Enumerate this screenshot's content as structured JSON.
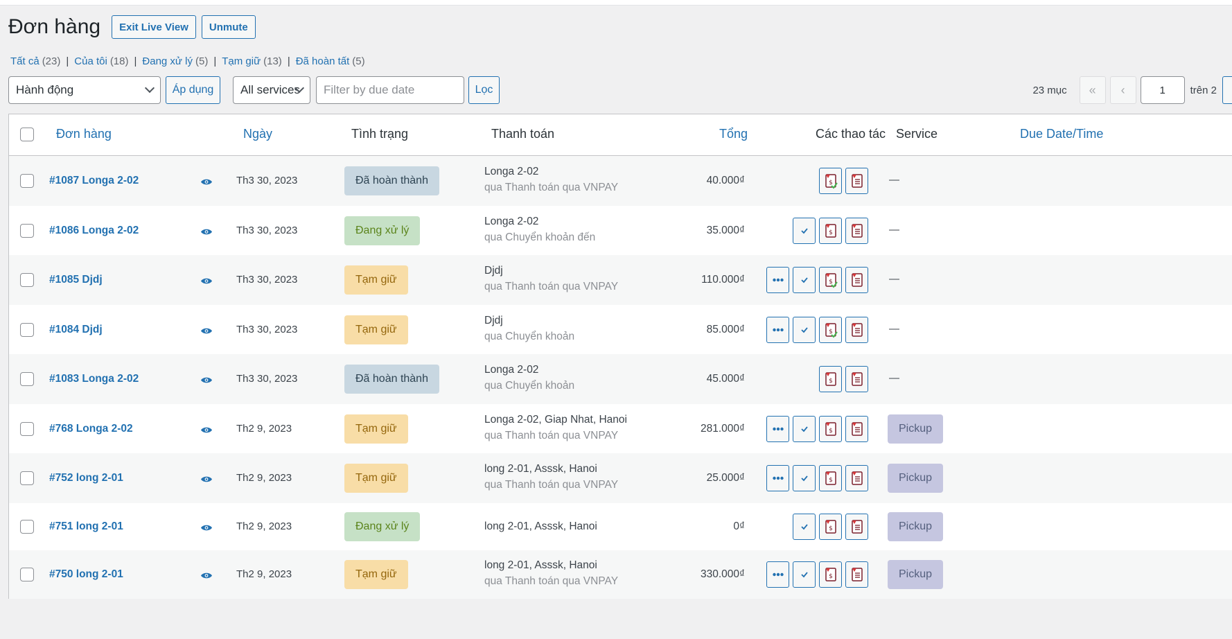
{
  "header": {
    "title": "Đơn hàng",
    "exit_live_view": "Exit Live View",
    "unmute": "Unmute"
  },
  "subsubsub": [
    {
      "label": "Tất cả",
      "count": "(23)"
    },
    {
      "label": "Của tôi",
      "count": "(18)"
    },
    {
      "label": "Đang xử lý",
      "count": "(5)"
    },
    {
      "label": "Tạm giữ",
      "count": "(13)"
    },
    {
      "label": "Đã hoàn tất",
      "count": "(5)"
    }
  ],
  "tablenav": {
    "bulk_action": "Hành động",
    "apply": "Áp dụng",
    "services": "All services",
    "due_date_placeholder": "Filter by due date",
    "filter": "Lọc",
    "items_count": "23 mục",
    "first": "«",
    "prev": "‹",
    "current_page": "1",
    "of_pages": "trên 2"
  },
  "columns": {
    "order": "Đơn hàng",
    "date": "Ngày",
    "status": "Tình trạng",
    "billing": "Thanh toán",
    "total": "Tổng",
    "actions": "Các thao tác",
    "service": "Service",
    "due": "Due Date/Time"
  },
  "orders": [
    {
      "order": "#1087 Longa 2-02",
      "date": "Th3 30, 2023",
      "status": "Đã hoàn thành",
      "status_type": "done",
      "billing_name": "Longa 2-02",
      "billing_via": "qua Thanh toán qua VNPAY",
      "total": "40.000₫",
      "actions": [
        "invoice-check-icon",
        "packing-slip-icon"
      ],
      "service": "—"
    },
    {
      "order": "#1086 Longa 2-02",
      "date": "Th3 30, 2023",
      "status": "Đang xử lý",
      "status_type": "proc",
      "billing_name": "Longa 2-02",
      "billing_via": "qua Chuyển khoản đến",
      "total": "35.000₫",
      "actions": [
        "complete-check-icon",
        "invoice-icon",
        "packing-slip-icon"
      ],
      "service": "—"
    },
    {
      "order": "#1085 Djdj",
      "date": "Th3 30, 2023",
      "status": "Tạm giữ",
      "status_type": "hold",
      "billing_name": "Djdj",
      "billing_via": "qua Thanh toán qua VNPAY",
      "total": "110.000₫",
      "actions": [
        "processing-dots-icon",
        "complete-check-icon",
        "invoice-check-icon",
        "packing-slip-icon"
      ],
      "service": "—"
    },
    {
      "order": "#1084 Djdj",
      "date": "Th3 30, 2023",
      "status": "Tạm giữ",
      "status_type": "hold",
      "billing_name": "Djdj",
      "billing_via": "qua Chuyển khoản",
      "total": "85.000₫",
      "actions": [
        "processing-dots-icon",
        "complete-check-icon",
        "invoice-check-icon",
        "packing-slip-icon"
      ],
      "service": "—"
    },
    {
      "order": "#1083 Longa 2-02",
      "date": "Th3 30, 2023",
      "status": "Đã hoàn thành",
      "status_type": "done",
      "billing_name": "Longa 2-02",
      "billing_via": "qua Chuyển khoản",
      "total": "45.000₫",
      "actions": [
        "invoice-icon",
        "packing-slip-icon"
      ],
      "service": "—"
    },
    {
      "order": "#768 Longa 2-02",
      "date": "Th2 9, 2023",
      "status": "Tạm giữ",
      "status_type": "hold",
      "billing_name": "Longa 2-02, Giap Nhat, Hanoi",
      "billing_via": "qua Thanh toán qua VNPAY",
      "total": "281.000₫",
      "actions": [
        "processing-dots-icon",
        "complete-check-icon",
        "invoice-icon",
        "packing-slip-icon"
      ],
      "service": "Pickup"
    },
    {
      "order": "#752 long 2-01",
      "date": "Th2 9, 2023",
      "status": "Tạm giữ",
      "status_type": "hold",
      "billing_name": "long 2-01, Asssk, Hanoi",
      "billing_via": "qua Thanh toán qua VNPAY",
      "total": "25.000₫",
      "actions": [
        "processing-dots-icon",
        "complete-check-icon",
        "invoice-icon",
        "packing-slip-icon"
      ],
      "service": "Pickup"
    },
    {
      "order": "#751 long 2-01",
      "date": "Th2 9, 2023",
      "status": "Đang xử lý",
      "status_type": "proc",
      "billing_name": "long 2-01, Asssk, Hanoi",
      "billing_via": "",
      "total": "0₫",
      "actions": [
        "complete-check-icon",
        "invoice-icon",
        "packing-slip-icon"
      ],
      "service": "Pickup"
    },
    {
      "order": "#750 long 2-01",
      "date": "Th2 9, 2023",
      "status": "Tạm giữ",
      "status_type": "hold",
      "billing_name": "long 2-01, Asssk, Hanoi",
      "billing_via": "qua Thanh toán qua VNPAY",
      "total": "330.000₫",
      "actions": [
        "processing-dots-icon",
        "complete-check-icon",
        "invoice-icon",
        "packing-slip-icon"
      ],
      "service": "Pickup"
    }
  ]
}
